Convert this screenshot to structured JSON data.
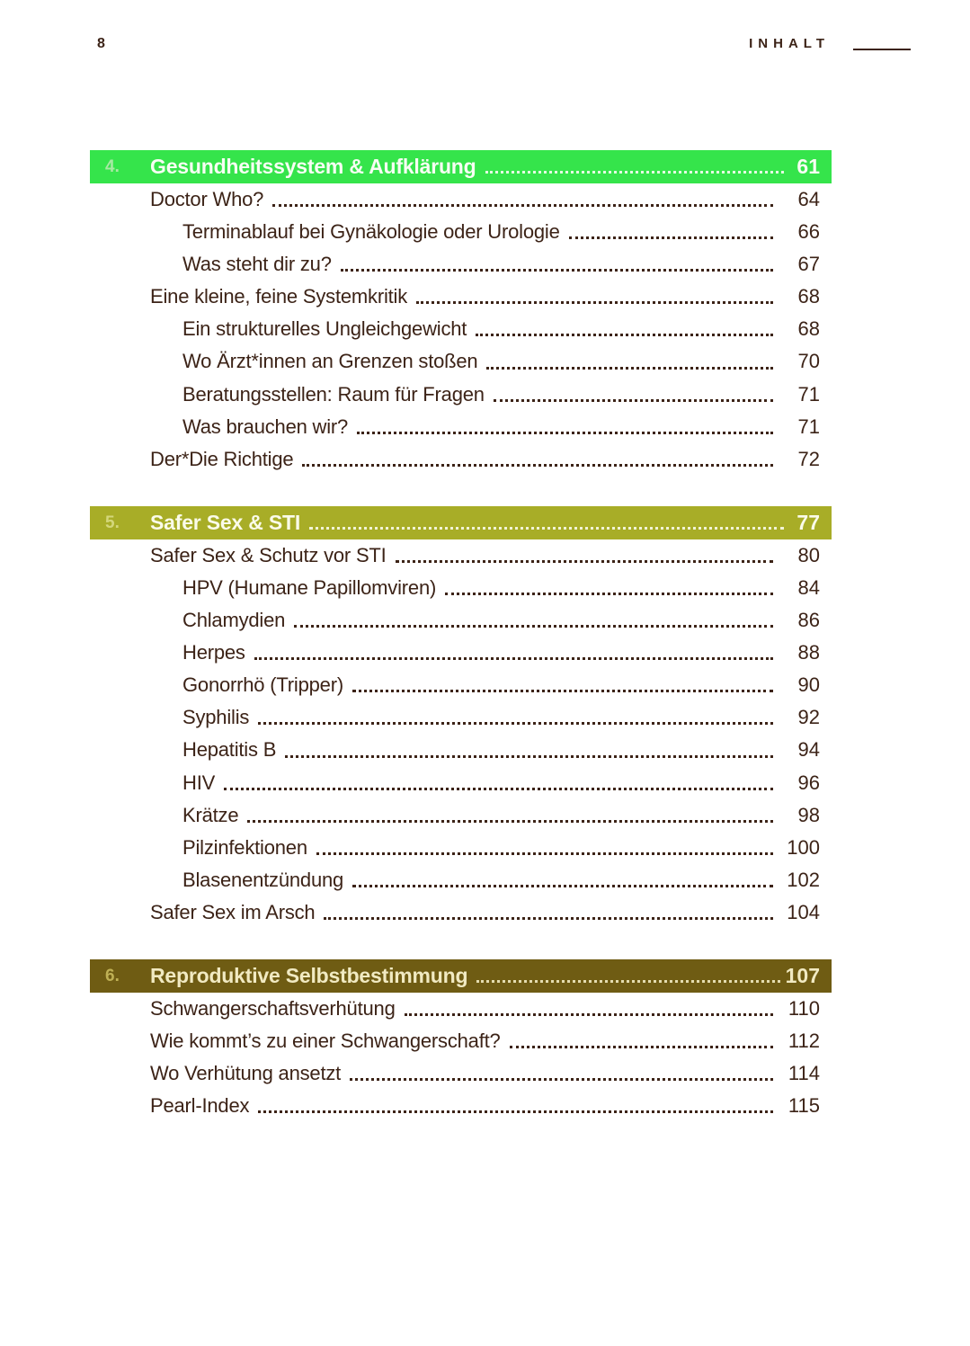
{
  "header": {
    "page_number": "8",
    "title": "INHALT"
  },
  "colors": {
    "body_text": "#3c2317"
  },
  "sections": [
    {
      "number": "4.",
      "title": "Gesundheitssystem & Aufklärung",
      "page": "61",
      "colors": {
        "bg": "#35e44b",
        "title": "#f7fdf3",
        "number": "#a9e9a4"
      },
      "entries": [
        {
          "label": "Doctor Who?",
          "page": "64",
          "level": 1
        },
        {
          "label": "Terminablauf bei Gynäkologie oder Urologie",
          "page": "66",
          "level": 2
        },
        {
          "label": "Was steht dir zu?",
          "page": "67",
          "level": 2
        },
        {
          "label": "Eine kleine, feine Systemkritik",
          "page": "68",
          "level": 1
        },
        {
          "label": "Ein strukturelles Ungleichgewicht",
          "page": "68",
          "level": 2
        },
        {
          "label": "Wo Ärzt*innen an Grenzen stoßen",
          "page": "70",
          "level": 2
        },
        {
          "label": "Beratungsstellen: Raum für Fragen",
          "page": "71",
          "level": 2
        },
        {
          "label": "Was brauchen wir?",
          "page": "71",
          "level": 2
        },
        {
          "label": "Der*Die Richtige",
          "page": "72",
          "level": 1
        }
      ]
    },
    {
      "number": "5.",
      "title": "Safer Sex & STI",
      "page": "77",
      "colors": {
        "bg": "#a8ad27",
        "title": "#fafbe9",
        "number": "#d4d77b"
      },
      "entries": [
        {
          "label": "Safer Sex & Schutz vor STI",
          "page": "80",
          "level": 1
        },
        {
          "label": "HPV (Humane Papillomviren)",
          "page": "84",
          "level": 2
        },
        {
          "label": "Chlamydien",
          "page": "86",
          "level": 2
        },
        {
          "label": "Herpes",
          "page": "88",
          "level": 2
        },
        {
          "label": "Gonorrhö (Tripper)",
          "page": "90",
          "level": 2
        },
        {
          "label": "Syphilis",
          "page": "92",
          "level": 2
        },
        {
          "label": "Hepatitis B",
          "page": "94",
          "level": 2
        },
        {
          "label": "HIV",
          "page": "96",
          "level": 2
        },
        {
          "label": "Krätze",
          "page": "98",
          "level": 2
        },
        {
          "label": "Pilzinfektionen",
          "page": "100",
          "level": 2
        },
        {
          "label": "Blasenentzündung",
          "page": "102",
          "level": 2
        },
        {
          "label": "Safer Sex im Arsch",
          "page": "104",
          "level": 1
        }
      ]
    },
    {
      "number": "6.",
      "title": "Reproduktive Selbstbestimmung",
      "page": "107",
      "colors": {
        "bg": "#6f5c13",
        "title": "#f1eac2",
        "number": "#bfb055"
      },
      "entries": [
        {
          "label": "Schwangerschaftsverhütung",
          "page": "110",
          "level": 1
        },
        {
          "label": "Wie kommt’s zu einer Schwangerschaft?",
          "page": "112",
          "level": 1
        },
        {
          "label": "Wo Verhütung ansetzt",
          "page": "114",
          "level": 1
        },
        {
          "label": "Pearl-Index",
          "page": "115",
          "level": 1
        }
      ]
    }
  ]
}
